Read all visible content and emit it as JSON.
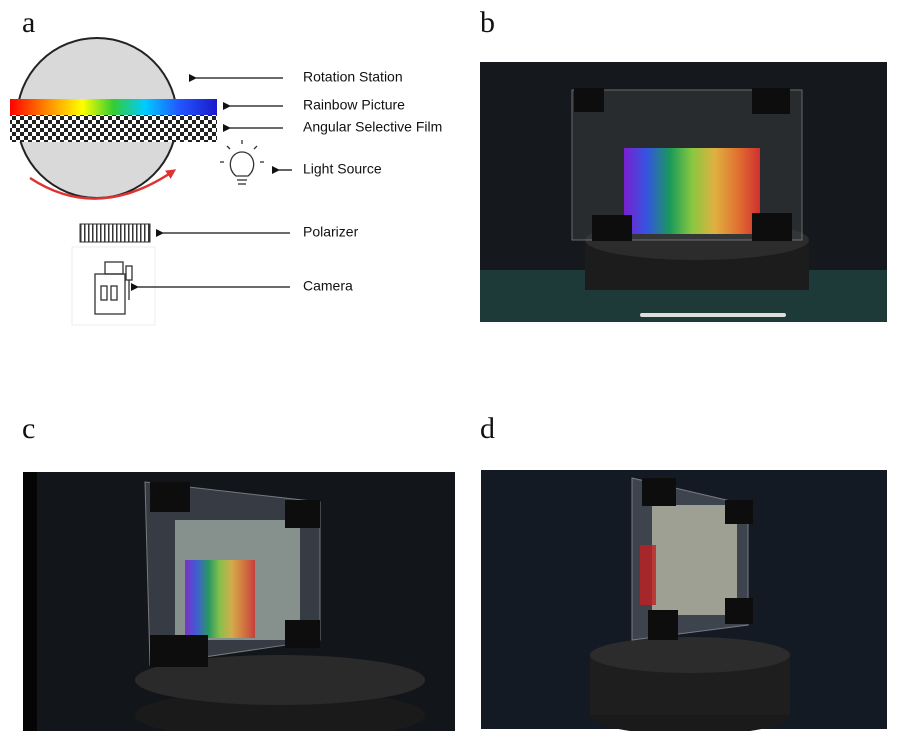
{
  "panels": [
    {
      "label": "a"
    },
    {
      "label": "b"
    },
    {
      "label": "c"
    },
    {
      "label": "d"
    }
  ],
  "diagram": {
    "labels": [
      "Rotation Station",
      "Rainbow Picture",
      "Angular Selective Film",
      "Light Source",
      "Polarizer",
      "Camera"
    ]
  }
}
